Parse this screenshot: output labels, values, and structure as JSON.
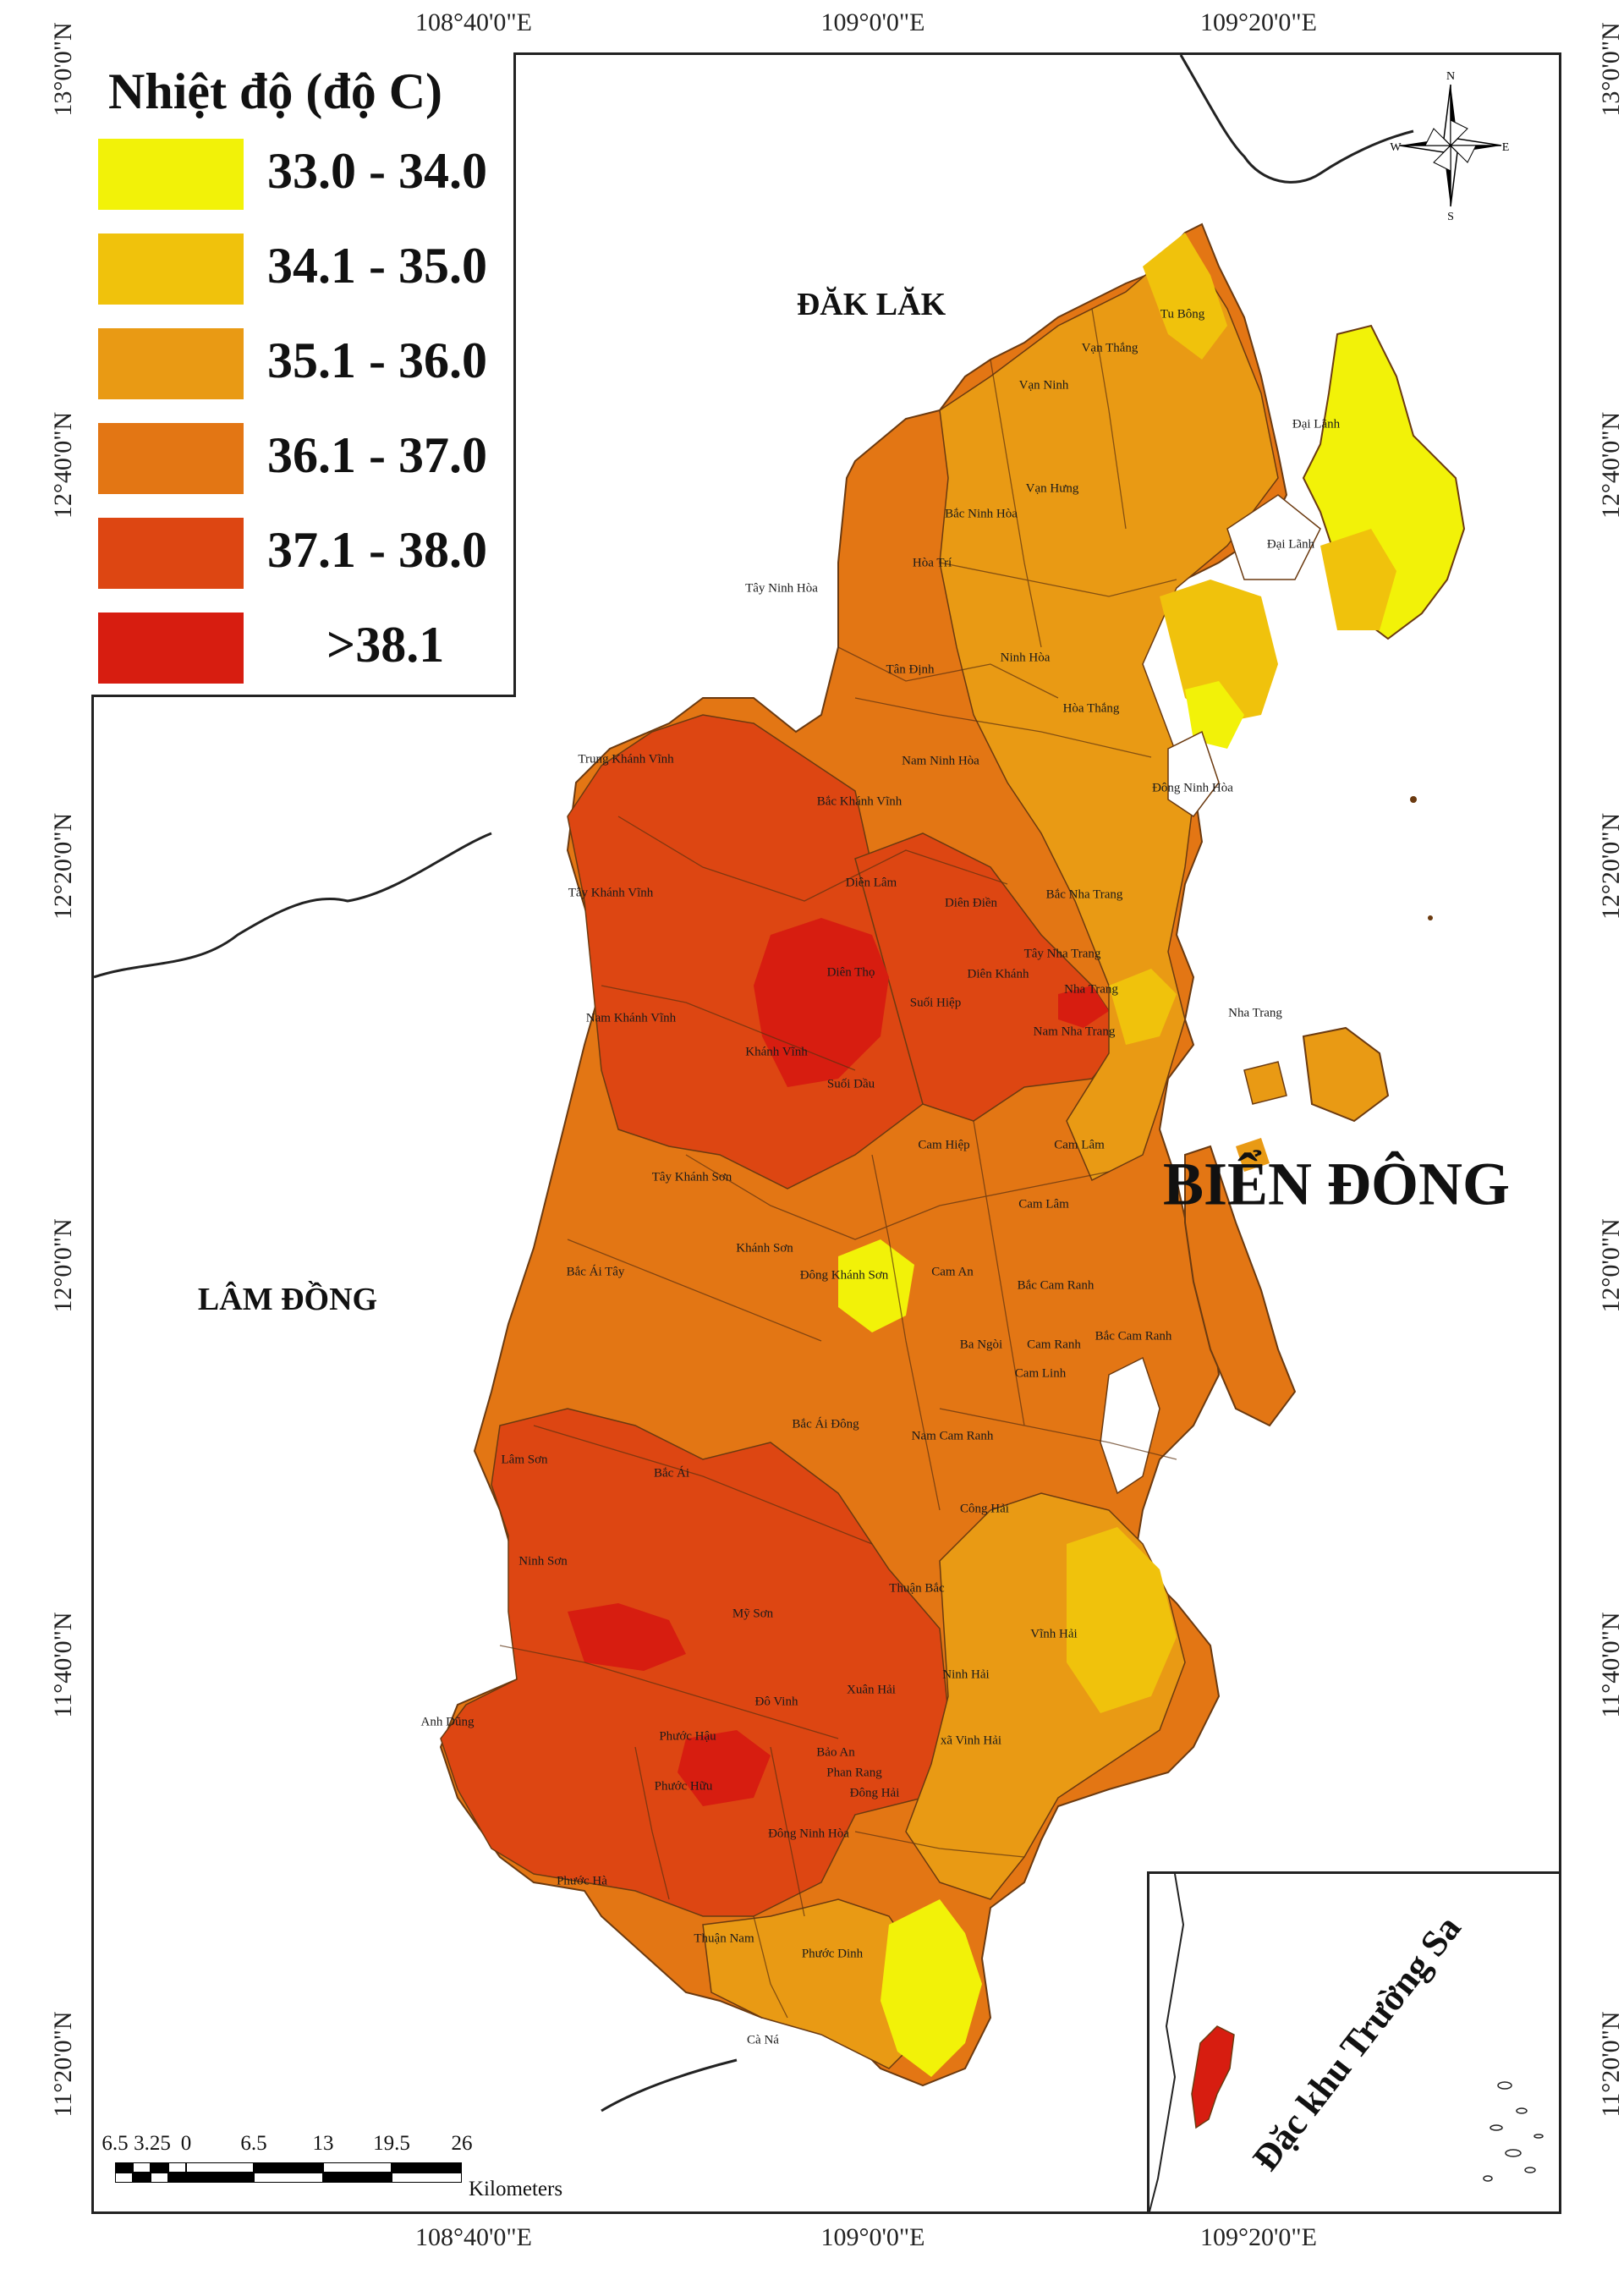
{
  "legend": {
    "title": "Nhiệt độ (độ C)",
    "items": [
      {
        "label": "33.0 - 34.0",
        "color": "#f2f208"
      },
      {
        "label": "34.1 - 35.0",
        "color": "#f0c20c"
      },
      {
        "label": "35.1 - 36.0",
        "color": "#e99a14"
      },
      {
        "label": "36.1 - 37.0",
        "color": "#e37614"
      },
      {
        "label": "37.1 - 38.0",
        "color": "#dd4612"
      },
      {
        "label": ">38.1",
        "color": "#d71d10"
      }
    ]
  },
  "axes": {
    "top": [
      "108°40'0\"E",
      "109°0'0\"E",
      "109°20'0\"E"
    ],
    "bottom": [
      "108°40'0\"E",
      "109°0'0\"E",
      "109°20'0\"E"
    ],
    "left": [
      "13°0'0\"N",
      "12°40'0\"N",
      "12°20'0\"N",
      "12°0'0\"N",
      "11°40'0\"N",
      "11°20'0\"N"
    ],
    "right": [
      "13°0'0\"N",
      "12°40'0\"N",
      "12°20'0\"N",
      "12°0'0\"N",
      "11°40'0\"N",
      "11°20'0\"N"
    ]
  },
  "labels": {
    "sea": "BIỂN ĐÔNG",
    "dak_lak": "ĐĂK LĂK",
    "lam_dong": "LÂM ĐỒNG"
  },
  "communes": [
    "Tu Bông",
    "Vạn Thắng",
    "Vạn Ninh",
    "Đại Lãnh",
    "Vạn Hưng",
    "Bắc Ninh Hòa",
    "Hòa Trí",
    "Đại Lãnh",
    "Tây Ninh Hòa",
    "Tân Định",
    "Ninh Hòa",
    "Hòa Thắng",
    "Nam Ninh Hòa",
    "Đông Ninh Hòa",
    "Trung Khánh Vĩnh",
    "Bắc Khánh Vĩnh",
    "Tây Khánh Vĩnh",
    "Diên Lâm",
    "Diên Điền",
    "Bắc Nha Trang",
    "Tây Nha Trang",
    "Diên Thọ",
    "Diên Khánh",
    "Nha Trang",
    "Suối Hiệp",
    "Nam Khánh Vĩnh",
    "Khánh Vĩnh",
    "Nam Nha Trang",
    "Nha Trang",
    "Suối Dầu",
    "Cam Hiệp",
    "Cam Lâm",
    "Tây Khánh Sơn",
    "Cam Lâm",
    "Khánh Sơn",
    "Đông Khánh Sơn",
    "Bắc Ái Tây",
    "Cam An",
    "Bắc Cam Ranh",
    "Ba Ngòi",
    "Cam Ranh",
    "Bắc Cam Ranh",
    "Cam Linh",
    "Bắc Ái Đông",
    "Nam Cam Ranh",
    "Lâm Sơn",
    "Bắc Ái",
    "Công Hải",
    "Ninh Sơn",
    "Thuận Bắc",
    "Mỹ Sơn",
    "Vĩnh Hải",
    "Ninh Hải",
    "Xuân Hải",
    "Đô Vinh",
    "Anh Dũng",
    "Phước Hậu",
    "xã Vinh Hải",
    "Bảo An",
    "Phan Rang",
    "Phước Hữu",
    "Đông Hải",
    "Đông Ninh Hòa",
    "Phước Hà",
    "Thuận Nam",
    "Phước Dinh",
    "Cà Ná"
  ],
  "scale": {
    "numbers": [
      "6.5",
      "3.25",
      "0",
      "6.5",
      "13",
      "19.5",
      "26"
    ],
    "unit": "Kilometers"
  },
  "inset": {
    "label": "Đặc khu Trường Sa"
  },
  "compass": {
    "n": "N",
    "s": "S",
    "e": "E",
    "w": "W"
  }
}
